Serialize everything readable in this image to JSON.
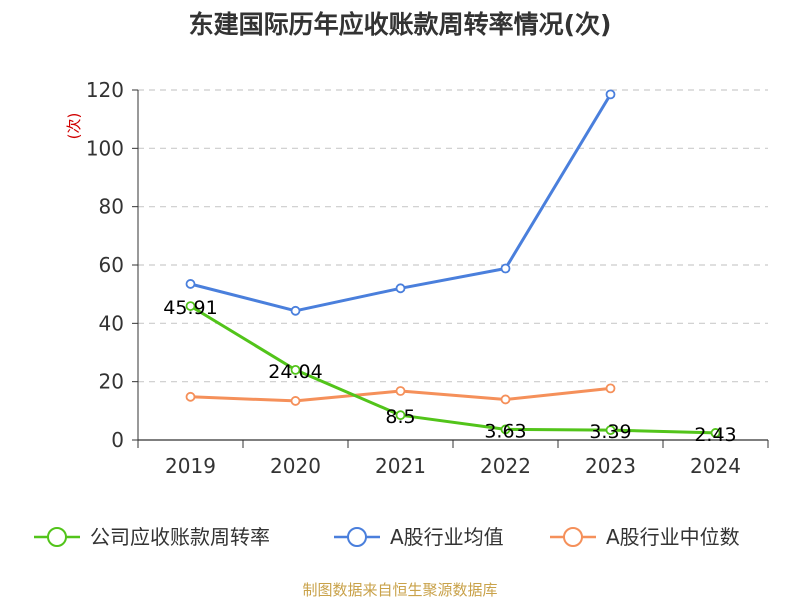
{
  "chart_data": {
    "type": "line",
    "title": "东建国际历年应收账款周转率情况(次)",
    "ylabel": "(次)",
    "xlabel": "",
    "categories": [
      "2019",
      "2020",
      "2021",
      "2022",
      "2023",
      "2024"
    ],
    "ylim": [
      0,
      120
    ],
    "yticks": [
      0,
      20,
      40,
      60,
      80,
      100,
      120
    ],
    "grid": true,
    "legend_position": "bottom",
    "series": [
      {
        "name": "公司应收账款周转率",
        "color": "#52c41a",
        "values": [
          45.91,
          24.04,
          8.5,
          3.63,
          3.39,
          2.43
        ],
        "labels": [
          "45.91",
          "24.04",
          "8.5",
          "3.63",
          "3.39",
          "2.43"
        ],
        "show_labels": true
      },
      {
        "name": "A股行业均值",
        "color": "#4a7fdc",
        "values": [
          53.5,
          44.3,
          52.0,
          58.8,
          118.5,
          null
        ],
        "show_labels": false
      },
      {
        "name": "A股行业中位数",
        "color": "#f5905a",
        "values": [
          14.8,
          13.4,
          16.8,
          13.9,
          17.7,
          null
        ],
        "show_labels": false
      }
    ]
  },
  "source": "制图数据来自恒生聚源数据库"
}
